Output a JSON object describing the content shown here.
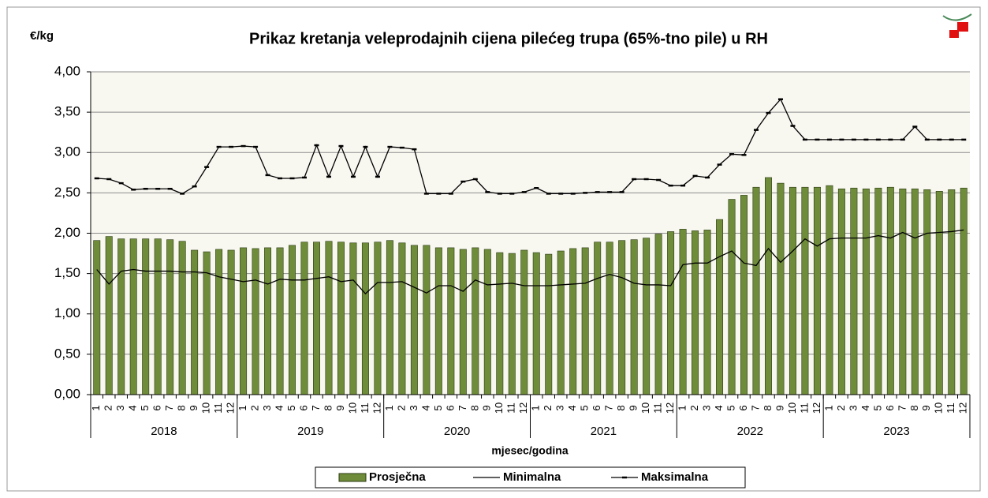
{
  "chart_data": {
    "type": "bar",
    "title": "Prikaz kretanja veleprodajnih cijena pilećeg trupa (65%-tno pile) u RH",
    "y_label": "€/kg",
    "x_label": "mjesec/godina",
    "categories": [
      "1",
      "2",
      "3",
      "4",
      "5",
      "6",
      "7",
      "8",
      "9",
      "10",
      "11",
      "12",
      "1",
      "2",
      "3",
      "4",
      "5",
      "6",
      "7",
      "8",
      "9",
      "10",
      "11",
      "12",
      "1",
      "2",
      "3",
      "4",
      "5",
      "6",
      "7",
      "8",
      "9",
      "10",
      "11",
      "12",
      "1",
      "2",
      "3",
      "4",
      "5",
      "6",
      "7",
      "8",
      "9",
      "10",
      "11",
      "12",
      "1",
      "2",
      "3",
      "4",
      "5",
      "6",
      "7",
      "8",
      "9",
      "10",
      "11",
      "12",
      "1",
      "2",
      "3",
      "4",
      "5",
      "6",
      "7",
      "8",
      "9",
      "10",
      "11",
      "12"
    ],
    "years": [
      "2018",
      "2019",
      "2020",
      "2021",
      "2022",
      "2023"
    ],
    "ylim": [
      0,
      4
    ],
    "yticks": [
      {
        "value": 0,
        "label": "0,00"
      },
      {
        "value": 0.5,
        "label": "0,50"
      },
      {
        "value": 1,
        "label": "1,00"
      },
      {
        "value": 1.5,
        "label": "1,50"
      },
      {
        "value": 2,
        "label": "2,00"
      },
      {
        "value": 2.5,
        "label": "2,50"
      },
      {
        "value": 3,
        "label": "3,00"
      },
      {
        "value": 3.5,
        "label": "3,50"
      },
      {
        "value": 4,
        "label": "4,00"
      }
    ],
    "grid": true,
    "legend": "bottom",
    "series": [
      {
        "name": "Prosječna",
        "color": "#6f8c3a",
        "kind": "bar",
        "values": [
          1.91,
          1.96,
          1.93,
          1.93,
          1.93,
          1.93,
          1.92,
          1.9,
          1.79,
          1.77,
          1.8,
          1.79,
          1.82,
          1.81,
          1.82,
          1.82,
          1.85,
          1.89,
          1.89,
          1.9,
          1.89,
          1.88,
          1.88,
          1.89,
          1.91,
          1.88,
          1.85,
          1.85,
          1.82,
          1.82,
          1.8,
          1.82,
          1.8,
          1.76,
          1.75,
          1.79,
          1.76,
          1.74,
          1.78,
          1.81,
          1.82,
          1.89,
          1.89,
          1.91,
          1.92,
          1.94,
          1.99,
          2.02,
          2.05,
          2.03,
          2.04,
          2.17,
          2.42,
          2.47,
          2.57,
          2.69,
          2.62,
          2.57,
          2.57,
          2.57,
          2.59,
          2.55,
          2.56,
          2.55,
          2.56,
          2.57,
          2.55,
          2.55,
          2.54,
          2.52,
          2.54,
          2.56
        ]
      },
      {
        "name": "Minimalna",
        "color": "#000000",
        "kind": "line",
        "values": [
          1.55,
          1.37,
          1.53,
          1.55,
          1.53,
          1.53,
          1.53,
          1.52,
          1.52,
          1.51,
          1.46,
          1.43,
          1.4,
          1.42,
          1.37,
          1.43,
          1.42,
          1.42,
          1.44,
          1.46,
          1.4,
          1.42,
          1.25,
          1.39,
          1.39,
          1.4,
          1.33,
          1.26,
          1.35,
          1.35,
          1.28,
          1.42,
          1.36,
          1.37,
          1.38,
          1.35,
          1.35,
          1.35,
          1.36,
          1.37,
          1.38,
          1.44,
          1.49,
          1.45,
          1.38,
          1.36,
          1.36,
          1.35,
          1.61,
          1.63,
          1.63,
          1.71,
          1.78,
          1.63,
          1.6,
          1.81,
          1.64,
          1.78,
          1.93,
          1.84,
          1.93,
          1.94,
          1.94,
          1.94,
          1.97,
          1.94,
          2.01,
          1.94,
          2.0,
          2.01,
          2.02,
          2.04
        ]
      },
      {
        "name": "Maksimalna",
        "color": "#000000",
        "kind": "line",
        "marker": "dash",
        "values": [
          2.68,
          2.67,
          2.62,
          2.54,
          2.55,
          2.55,
          2.55,
          2.49,
          2.58,
          2.82,
          3.07,
          3.07,
          3.08,
          3.07,
          2.72,
          2.68,
          2.68,
          2.69,
          3.09,
          2.7,
          3.08,
          2.7,
          3.07,
          2.7,
          3.07,
          3.06,
          3.04,
          2.49,
          2.49,
          2.49,
          2.64,
          2.67,
          2.51,
          2.49,
          2.49,
          2.51,
          2.56,
          2.49,
          2.49,
          2.49,
          2.5,
          2.51,
          2.51,
          2.51,
          2.67,
          2.67,
          2.66,
          2.59,
          2.59,
          2.71,
          2.69,
          2.85,
          2.98,
          2.97,
          3.28,
          3.49,
          3.66,
          3.33,
          3.16,
          3.16,
          3.16,
          3.16,
          3.16,
          3.16,
          3.16,
          3.16,
          3.16,
          3.32,
          3.16,
          3.16,
          3.16,
          3.16
        ]
      }
    ]
  }
}
